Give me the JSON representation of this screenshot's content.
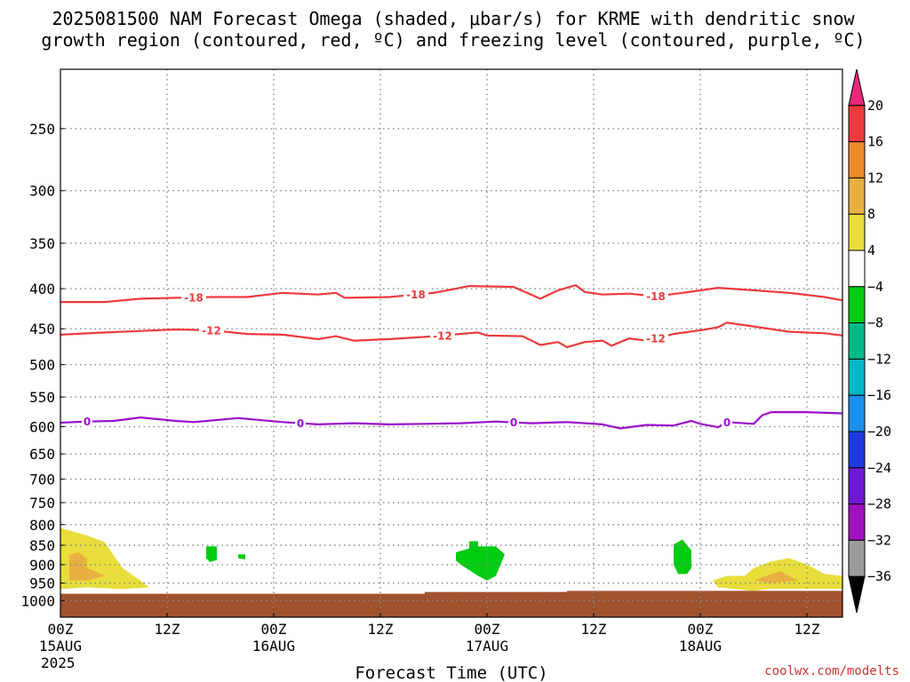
{
  "title": {
    "line1": "2025081500 NAM Forecast Omega (shaded, μbar/s) for KRME with dendritic snow",
    "line2": "growth region (contoured, red, ºC) and freezing level (contoured, purple, ºC)"
  },
  "credit": "coolwx.com/modelts",
  "colors": {
    "dgz_contour": "#ee3a3a",
    "freezing_contour": "#9a10cc",
    "ground": "#a0522d",
    "omega_green": "#00cc11",
    "omega_yellow": "#e8dd3a",
    "omega_orange": "#e0a030"
  },
  "chart_data": {
    "type": "heatmap",
    "xlabel": "Forecast Time (UTC)",
    "ylabel": "",
    "y_axis": "pressure (hPa), inverted",
    "ylim": [
      1050,
      210
    ],
    "grid": true,
    "x_ticks": [
      {
        "label": "00Z",
        "sub": "15AUG",
        "sub2": "2025",
        "hour": 0
      },
      {
        "label": "12Z",
        "sub": "",
        "sub2": "",
        "hour": 12
      },
      {
        "label": "00Z",
        "sub": "16AUG",
        "sub2": "",
        "hour": 24
      },
      {
        "label": "12Z",
        "sub": "",
        "sub2": "",
        "hour": 36
      },
      {
        "label": "00Z",
        "sub": "17AUG",
        "sub2": "",
        "hour": 48
      },
      {
        "label": "12Z",
        "sub": "",
        "sub2": "",
        "hour": 60
      },
      {
        "label": "00Z",
        "sub": "18AUG",
        "sub2": "",
        "hour": 72
      },
      {
        "label": "12Z",
        "sub": "",
        "sub2": "",
        "hour": 84
      }
    ],
    "y_ticks": [
      {
        "label": "250",
        "value": 250
      },
      {
        "label": "300",
        "value": 300
      },
      {
        "label": "350",
        "value": 350
      },
      {
        "label": "400",
        "value": 400
      },
      {
        "label": "450",
        "value": 450
      },
      {
        "label": "500",
        "value": 500
      },
      {
        "label": "550",
        "value": 550
      },
      {
        "label": "600",
        "value": 600
      },
      {
        "label": "650",
        "value": 650
      },
      {
        "label": "700",
        "value": 700
      },
      {
        "label": "750",
        "value": 750
      },
      {
        "label": "800",
        "value": 800
      },
      {
        "label": "850",
        "value": 850
      },
      {
        "label": "900",
        "value": 900
      },
      {
        "label": "950",
        "value": 950
      },
      {
        "label": "1000",
        "value": 1000
      }
    ],
    "colorbar": {
      "units": "μbar/s",
      "labels": [
        "20",
        "16",
        "12",
        "8",
        "4",
        "−4",
        "−8",
        "−12",
        "−16",
        "−20",
        "−24",
        "−28",
        "−32",
        "−36"
      ],
      "bins": [
        {
          "from": 20,
          "to": 24,
          "color": "#e8287a"
        },
        {
          "from": 16,
          "to": 20,
          "color": "#ee3a3a"
        },
        {
          "from": 12,
          "to": 16,
          "color": "#ee8a2a"
        },
        {
          "from": 8,
          "to": 12,
          "color": "#e8b040"
        },
        {
          "from": 4,
          "to": 8,
          "color": "#e8dd3a"
        },
        {
          "from": -4,
          "to": 4,
          "color": "#ffffff"
        },
        {
          "from": -8,
          "to": -4,
          "color": "#00cc11"
        },
        {
          "from": -12,
          "to": -8,
          "color": "#00bb88"
        },
        {
          "from": -16,
          "to": -12,
          "color": "#00b8c8"
        },
        {
          "from": -20,
          "to": -16,
          "color": "#1a90ee"
        },
        {
          "from": -24,
          "to": -20,
          "color": "#1c3ae0"
        },
        {
          "from": -28,
          "to": -24,
          "color": "#7018d8"
        },
        {
          "from": -32,
          "to": -28,
          "color": "#a010c0"
        },
        {
          "from": -36,
          "to": -32,
          "color": "#9c9c9c"
        },
        {
          "from": -40,
          "to": -36,
          "color": "#000000"
        }
      ]
    },
    "series": [
      {
        "name": "-18",
        "kind": "dgz_contour",
        "label_at_hours": [
          15,
          40,
          67
        ],
        "points": [
          [
            0,
            416
          ],
          [
            5,
            416
          ],
          [
            9,
            412
          ],
          [
            13,
            411
          ],
          [
            17,
            410
          ],
          [
            21,
            410
          ],
          [
            25,
            405
          ],
          [
            29,
            407
          ],
          [
            31,
            405
          ],
          [
            32,
            411
          ],
          [
            37,
            410
          ],
          [
            42,
            405
          ],
          [
            44,
            401
          ],
          [
            46,
            397
          ],
          [
            51,
            398
          ],
          [
            54,
            412
          ],
          [
            56,
            402
          ],
          [
            58,
            396
          ],
          [
            59,
            404
          ],
          [
            61,
            407
          ],
          [
            64,
            406
          ],
          [
            67,
            409
          ],
          [
            70,
            405
          ],
          [
            74,
            399
          ],
          [
            78,
            402
          ],
          [
            82,
            405
          ],
          [
            86,
            410
          ],
          [
            88,
            414
          ]
        ]
      },
      {
        "name": "-12",
        "kind": "dgz_contour",
        "label_at_hours": [
          17,
          43,
          67
        ],
        "points": [
          [
            0,
            458
          ],
          [
            5,
            455
          ],
          [
            9,
            453
          ],
          [
            13,
            451
          ],
          [
            17,
            452
          ],
          [
            21,
            457
          ],
          [
            25,
            458
          ],
          [
            29,
            464
          ],
          [
            31,
            460
          ],
          [
            33,
            466
          ],
          [
            37,
            464
          ],
          [
            41,
            461
          ],
          [
            44,
            458
          ],
          [
            47,
            455
          ],
          [
            48,
            459
          ],
          [
            52,
            460
          ],
          [
            54,
            472
          ],
          [
            56,
            468
          ],
          [
            57,
            475
          ],
          [
            59,
            468
          ],
          [
            61,
            466
          ],
          [
            62,
            473
          ],
          [
            64,
            463
          ],
          [
            66,
            466
          ],
          [
            69,
            457
          ],
          [
            72,
            452
          ],
          [
            74,
            448
          ],
          [
            75,
            442
          ],
          [
            78,
            447
          ],
          [
            82,
            454
          ],
          [
            86,
            456
          ],
          [
            88,
            459
          ]
        ]
      },
      {
        "name": "0",
        "kind": "freezing_contour",
        "label_at_hours": [
          3,
          27,
          51,
          75
        ],
        "points": [
          [
            0,
            593
          ],
          [
            3,
            591
          ],
          [
            6,
            590
          ],
          [
            9,
            584
          ],
          [
            13,
            590
          ],
          [
            15,
            592
          ],
          [
            20,
            585
          ],
          [
            25,
            592
          ],
          [
            29,
            596
          ],
          [
            33,
            594
          ],
          [
            37,
            596
          ],
          [
            41,
            595
          ],
          [
            45,
            594
          ],
          [
            49,
            591
          ],
          [
            53,
            594
          ],
          [
            57,
            592
          ],
          [
            61,
            596
          ],
          [
            63,
            603
          ],
          [
            66,
            597
          ],
          [
            69,
            598
          ],
          [
            71,
            590
          ],
          [
            72,
            595
          ],
          [
            74,
            601
          ],
          [
            75,
            592
          ],
          [
            78,
            595
          ],
          [
            79,
            580
          ],
          [
            80,
            575
          ],
          [
            84,
            575
          ],
          [
            88,
            577
          ]
        ]
      }
    ],
    "shaded_regions": [
      {
        "bin": "4 to 8",
        "color": "#e8dd3a",
        "points": [
          [
            0,
            808
          ],
          [
            3,
            826
          ],
          [
            5,
            843
          ],
          [
            6,
            876
          ],
          [
            7,
            909
          ],
          [
            9,
            943
          ],
          [
            10,
            962
          ],
          [
            7,
            967
          ],
          [
            3,
            962
          ],
          [
            0,
            967
          ]
        ]
      },
      {
        "bin": "8 to 12",
        "color": "#e8b040",
        "points": [
          [
            1,
            876
          ],
          [
            2,
            868
          ],
          [
            3,
            885
          ],
          [
            3,
            908
          ],
          [
            5,
            930
          ],
          [
            3,
            943
          ],
          [
            1,
            943
          ]
        ]
      },
      {
        "bin": "-8 to -4",
        "color": "#00cc11",
        "points": [
          [
            16.4,
            853
          ],
          [
            17.6,
            853
          ],
          [
            17.6,
            888
          ],
          [
            16.8,
            893
          ],
          [
            16.4,
            883
          ]
        ]
      },
      {
        "bin": "-8 to -4",
        "color": "#00cc11",
        "points": [
          [
            20,
            873
          ],
          [
            20.8,
            873
          ],
          [
            20.8,
            886
          ],
          [
            20,
            883
          ]
        ]
      },
      {
        "bin": "-8 to -4",
        "color": "#00cc11",
        "points": [
          [
            44.5,
            868
          ],
          [
            46,
            858
          ],
          [
            46,
            840
          ],
          [
            47,
            840
          ],
          [
            47,
            853
          ],
          [
            49,
            853
          ],
          [
            50,
            873
          ],
          [
            49,
            930
          ],
          [
            48,
            943
          ],
          [
            47,
            930
          ],
          [
            45,
            899
          ],
          [
            44.5,
            889
          ]
        ]
      },
      {
        "bin": "-8 to -4",
        "color": "#00cc11",
        "points": [
          [
            69,
            848
          ],
          [
            70,
            836
          ],
          [
            71,
            863
          ],
          [
            71,
            909
          ],
          [
            70.5,
            925
          ],
          [
            69.5,
            925
          ],
          [
            69,
            899
          ]
        ]
      },
      {
        "bin": "4 to 8",
        "color": "#e8dd3a",
        "points": [
          [
            73.4,
            943
          ],
          [
            75,
            930
          ],
          [
            77,
            930
          ],
          [
            78,
            909
          ],
          [
            80,
            891
          ],
          [
            82,
            883
          ],
          [
            84,
            899
          ],
          [
            86,
            925
          ],
          [
            88,
            930
          ],
          [
            88,
            966
          ],
          [
            84,
            966
          ],
          [
            80,
            966
          ],
          [
            78,
            972
          ],
          [
            74,
            962
          ]
        ]
      },
      {
        "bin": "8 to 12",
        "color": "#e8b040",
        "points": [
          [
            78,
            943
          ],
          [
            80,
            925
          ],
          [
            81,
            917
          ],
          [
            82,
            930
          ],
          [
            83,
            943
          ],
          [
            80,
            950
          ]
        ]
      },
      {
        "bin": "ground",
        "color": "#a0522d",
        "points": [
          [
            0,
            980
          ],
          [
            41,
            980
          ],
          [
            41,
            975
          ],
          [
            57,
            975
          ],
          [
            57,
            972
          ],
          [
            88,
            972
          ],
          [
            88,
            1050
          ],
          [
            0,
            1050
          ]
        ]
      }
    ]
  }
}
